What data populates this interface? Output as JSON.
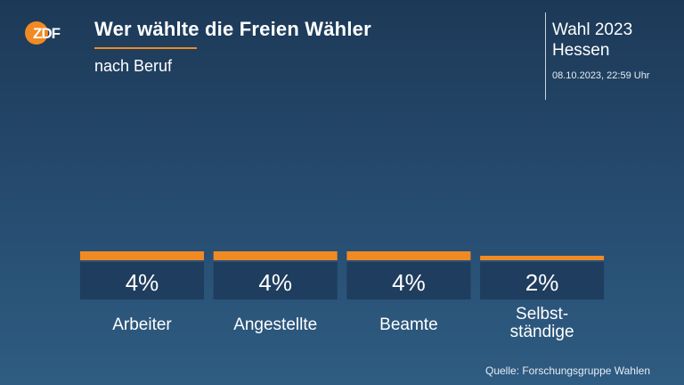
{
  "header": {
    "logo_text": "ZDF",
    "title": "Wer wählte die Freien Wähler",
    "subtitle": "nach Beruf"
  },
  "election": {
    "name_line1": "Wahl 2023",
    "name_line2": "Hessen",
    "timestamp": "08.10.2023, 22:59 Uhr"
  },
  "source": "Quelle: Forschungsgruppe Wahlen",
  "colors": {
    "accent": "#f08a24",
    "value_box": "#1f3d5e"
  },
  "chart_data": {
    "type": "bar",
    "title": "Wer wählte die Freien Wähler",
    "subtitle": "nach Beruf",
    "categories": [
      "Arbeiter",
      "Angestellte",
      "Beamte",
      "Selbst-\nständige"
    ],
    "series": [
      {
        "values": [
          4,
          4,
          4,
          2
        ]
      }
    ],
    "value_labels": [
      "4%",
      "4%",
      "4%",
      "2%"
    ],
    "unit": "%"
  }
}
